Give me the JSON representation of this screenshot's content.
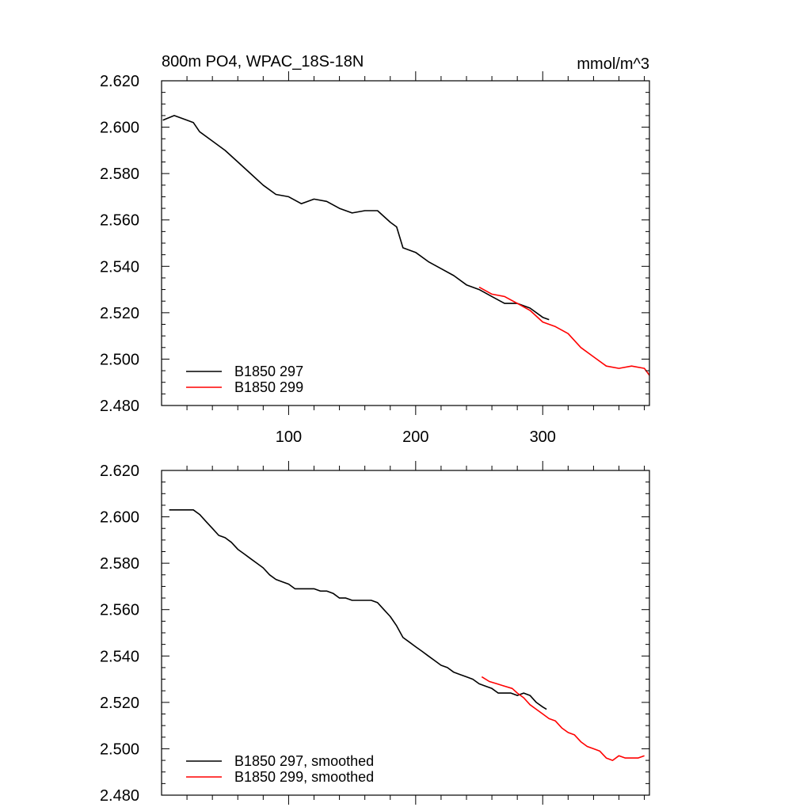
{
  "chart_data": [
    {
      "type": "line",
      "title": "800m PO4, WPAC_18S-18N",
      "units": "mmol/m^3",
      "xlim": [
        0,
        384
      ],
      "ylim": [
        2.48,
        2.62
      ],
      "x_ticks": [
        100,
        200,
        300
      ],
      "x_tick_labels": [
        "100",
        "200",
        "300"
      ],
      "y_ticks": [
        2.48,
        2.5,
        2.52,
        2.54,
        2.56,
        2.58,
        2.6,
        2.62
      ],
      "y_tick_labels": [
        "2.480",
        "2.500",
        "2.520",
        "2.540",
        "2.560",
        "2.580",
        "2.600",
        "2.620"
      ],
      "legend_position": "bottom-left",
      "series": [
        {
          "name": "B1850 297",
          "color": "#000000",
          "x": [
            1,
            10,
            20,
            25,
            30,
            40,
            50,
            60,
            70,
            80,
            90,
            100,
            110,
            120,
            130,
            140,
            150,
            160,
            170,
            180,
            185,
            190,
            200,
            210,
            220,
            230,
            240,
            250,
            260,
            270,
            280,
            290,
            300,
            305
          ],
          "y": [
            2.603,
            2.605,
            2.603,
            2.602,
            2.598,
            2.594,
            2.59,
            2.585,
            2.58,
            2.575,
            2.571,
            2.57,
            2.567,
            2.569,
            2.568,
            2.565,
            2.563,
            2.564,
            2.564,
            2.559,
            2.557,
            2.548,
            2.546,
            2.542,
            2.539,
            2.536,
            2.532,
            2.53,
            2.527,
            2.524,
            2.524,
            2.522,
            2.518,
            2.517
          ]
        },
        {
          "name": "B1850 299",
          "color": "#ff0000",
          "x": [
            250,
            260,
            270,
            280,
            290,
            300,
            310,
            320,
            330,
            340,
            350,
            360,
            370,
            380,
            384
          ],
          "y": [
            2.531,
            2.528,
            2.527,
            2.524,
            2.521,
            2.516,
            2.514,
            2.511,
            2.505,
            2.501,
            2.497,
            2.496,
            2.497,
            2.496,
            2.493
          ]
        }
      ]
    },
    {
      "type": "line",
      "xlim": [
        0,
        384
      ],
      "ylim": [
        2.48,
        2.62
      ],
      "x_ticks": [
        100,
        200,
        300
      ],
      "y_ticks": [
        2.48,
        2.5,
        2.52,
        2.54,
        2.56,
        2.58,
        2.6,
        2.62
      ],
      "y_tick_labels": [
        "2.480",
        "2.500",
        "2.520",
        "2.540",
        "2.560",
        "2.580",
        "2.600",
        "2.620"
      ],
      "legend_position": "bottom-left",
      "series": [
        {
          "name": "B1850 297, smoothed",
          "color": "#000000",
          "x": [
            6,
            10,
            15,
            20,
            25,
            30,
            35,
            40,
            45,
            50,
            55,
            60,
            65,
            70,
            75,
            80,
            85,
            90,
            95,
            100,
            105,
            110,
            115,
            120,
            125,
            130,
            135,
            140,
            145,
            150,
            155,
            160,
            165,
            170,
            175,
            180,
            185,
            190,
            195,
            200,
            205,
            210,
            215,
            220,
            225,
            230,
            235,
            240,
            245,
            250,
            255,
            260,
            265,
            270,
            275,
            280,
            285,
            290,
            295,
            300,
            303
          ],
          "y": [
            2.603,
            2.603,
            2.603,
            2.603,
            2.603,
            2.601,
            2.598,
            2.595,
            2.592,
            2.591,
            2.589,
            2.586,
            2.584,
            2.582,
            2.58,
            2.578,
            2.575,
            2.573,
            2.572,
            2.571,
            2.569,
            2.569,
            2.569,
            2.569,
            2.568,
            2.568,
            2.567,
            2.565,
            2.565,
            2.564,
            2.564,
            2.564,
            2.564,
            2.563,
            2.56,
            2.557,
            2.553,
            2.548,
            2.546,
            2.544,
            2.542,
            2.54,
            2.538,
            2.536,
            2.535,
            2.533,
            2.532,
            2.531,
            2.53,
            2.528,
            2.527,
            2.526,
            2.524,
            2.524,
            2.524,
            2.523,
            2.524,
            2.523,
            2.52,
            2.518,
            2.517
          ]
        },
        {
          "name": "B1850 299, smoothed",
          "color": "#ff0000",
          "x": [
            252,
            258,
            264,
            270,
            276,
            280,
            285,
            290,
            295,
            300,
            305,
            310,
            315,
            320,
            325,
            330,
            335,
            340,
            345,
            350,
            355,
            360,
            365,
            370,
            375,
            380
          ],
          "y": [
            2.531,
            2.529,
            2.528,
            2.527,
            2.526,
            2.524,
            2.522,
            2.519,
            2.517,
            2.515,
            2.513,
            2.512,
            2.509,
            2.507,
            2.506,
            2.503,
            2.501,
            2.5,
            2.499,
            2.496,
            2.495,
            2.497,
            2.496,
            2.496,
            2.496,
            2.497
          ]
        }
      ]
    }
  ]
}
